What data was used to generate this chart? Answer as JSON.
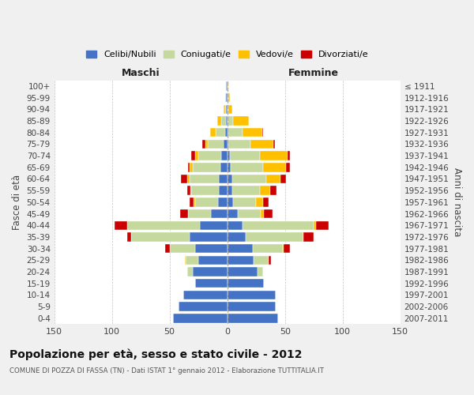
{
  "age_groups": [
    "0-4",
    "5-9",
    "10-14",
    "15-19",
    "20-24",
    "25-29",
    "30-34",
    "35-39",
    "40-44",
    "45-49",
    "50-54",
    "55-59",
    "60-64",
    "65-69",
    "70-74",
    "75-79",
    "80-84",
    "85-89",
    "90-94",
    "95-99",
    "100+"
  ],
  "birth_years": [
    "2007-2011",
    "2002-2006",
    "1997-2001",
    "1992-1996",
    "1987-1991",
    "1982-1986",
    "1977-1981",
    "1972-1976",
    "1967-1971",
    "1962-1966",
    "1957-1961",
    "1952-1956",
    "1947-1951",
    "1942-1946",
    "1937-1941",
    "1932-1936",
    "1927-1931",
    "1922-1926",
    "1917-1921",
    "1912-1916",
    "≤ 1911"
  ],
  "maschi": {
    "celibi": [
      47,
      42,
      38,
      28,
      30,
      25,
      28,
      33,
      24,
      14,
      8,
      7,
      7,
      6,
      5,
      3,
      2,
      1,
      1,
      1,
      1
    ],
    "coniugati": [
      0,
      0,
      0,
      0,
      5,
      11,
      22,
      50,
      63,
      20,
      20,
      24,
      26,
      24,
      20,
      14,
      8,
      4,
      1,
      1,
      0
    ],
    "vedovi": [
      0,
      0,
      0,
      0,
      0,
      1,
      0,
      0,
      0,
      0,
      1,
      1,
      2,
      3,
      3,
      2,
      5,
      4,
      1,
      0,
      0
    ],
    "divorziati": [
      0,
      0,
      0,
      0,
      0,
      0,
      4,
      4,
      11,
      7,
      4,
      3,
      5,
      1,
      3,
      3,
      0,
      0,
      0,
      0,
      0
    ]
  },
  "femmine": {
    "nubili": [
      44,
      42,
      42,
      32,
      26,
      23,
      22,
      16,
      13,
      9,
      5,
      4,
      4,
      3,
      2,
      1,
      1,
      0,
      0,
      0,
      0
    ],
    "coniugate": [
      0,
      0,
      0,
      0,
      5,
      13,
      26,
      50,
      62,
      20,
      20,
      24,
      30,
      28,
      26,
      19,
      12,
      5,
      1,
      1,
      0
    ],
    "vedove": [
      0,
      0,
      0,
      0,
      0,
      0,
      1,
      0,
      2,
      3,
      6,
      9,
      12,
      20,
      24,
      20,
      17,
      14,
      3,
      1,
      1
    ],
    "divorziate": [
      0,
      0,
      0,
      0,
      0,
      2,
      5,
      9,
      11,
      7,
      5,
      6,
      5,
      3,
      2,
      1,
      1,
      0,
      0,
      0,
      0
    ]
  },
  "colors": {
    "celibi": "#4472c4",
    "coniugati": "#c5d89d",
    "vedovi": "#ffc000",
    "divorziati": "#cc0000"
  },
  "xlim": 150,
  "title": "Popolazione per età, sesso e stato civile - 2012",
  "subtitle": "COMUNE DI POZZA DI FASSA (TN) - Dati ISTAT 1° gennaio 2012 - Elaborazione TUTTITALIA.IT",
  "ylabel": "Fasce di età",
  "right_ylabel": "Anni di nascita",
  "legend_labels": [
    "Celibi/Nubili",
    "Coniugati/e",
    "Vedovi/e",
    "Divorziati/e"
  ],
  "maschi_label": "Maschi",
  "femmine_label": "Femmine",
  "bg_color": "#f0f0f0",
  "plot_bg_color": "#ffffff"
}
